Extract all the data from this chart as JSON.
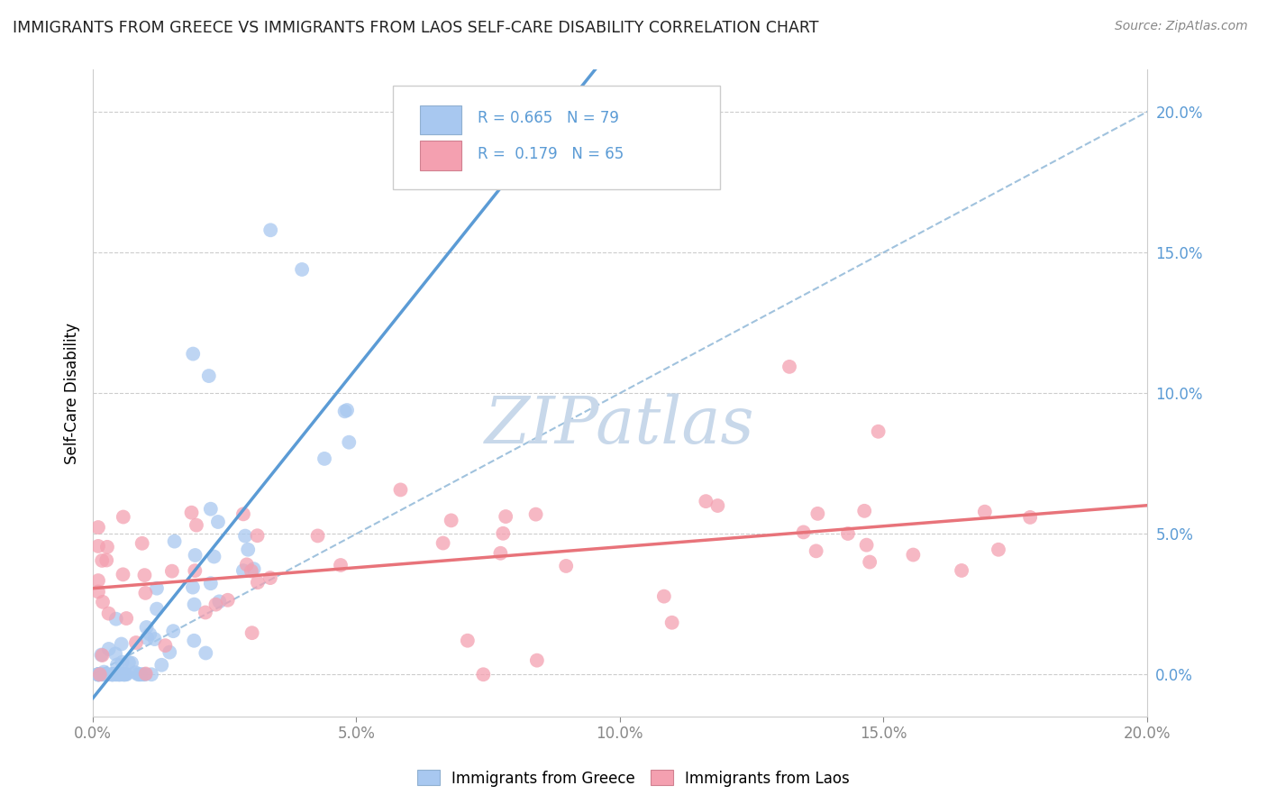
{
  "title": "IMMIGRANTS FROM GREECE VS IMMIGRANTS FROM LAOS SELF-CARE DISABILITY CORRELATION CHART",
  "source": "Source: ZipAtlas.com",
  "xlim": [
    0,
    0.2
  ],
  "ylim": [
    -0.015,
    0.215
  ],
  "ylabel": "Self-Care Disability",
  "ytick_values": [
    0.0,
    0.05,
    0.1,
    0.15,
    0.2
  ],
  "xtick_values": [
    0.0,
    0.05,
    0.1,
    0.15,
    0.2
  ],
  "legend_entries": [
    {
      "label": "Immigrants from Greece",
      "color": "#a8c8f0",
      "R": 0.665,
      "N": 79
    },
    {
      "label": "Immigrants from Laos",
      "color": "#f4a0b0",
      "R": 0.179,
      "N": 65
    }
  ],
  "greece_color": "#5b9bd5",
  "laos_color": "#e8737a",
  "greece_scatter_color": "#a8c8f0",
  "laos_scatter_color": "#f4a0b0",
  "ref_line_color": "#90b8d8",
  "background_color": "#ffffff",
  "grid_color": "#cccccc",
  "watermark": "ZIPatlas",
  "watermark_color": "#c8d8ea",
  "yaxis_label_color": "#5b9bd5",
  "title_color": "#222222",
  "source_color": "#888888"
}
